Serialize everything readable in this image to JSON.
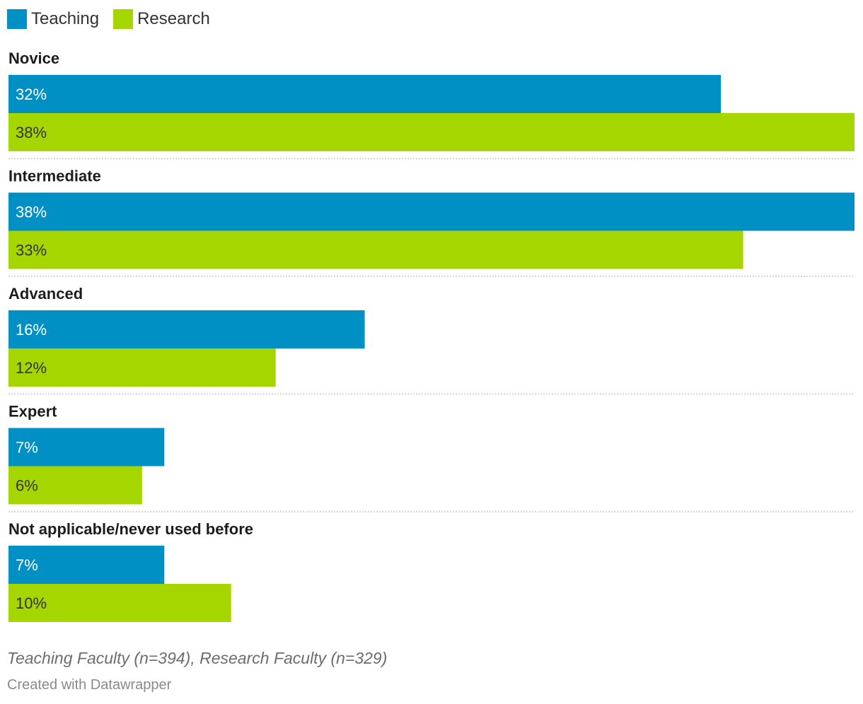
{
  "colors": {
    "teaching": "#0190c3",
    "research": "#a6d600",
    "label_on_teaching": "#ffffff",
    "label_on_research": "#333333",
    "divider": "#cccccc"
  },
  "chart_data": {
    "type": "bar",
    "orientation": "horizontal",
    "grouping": "grouped",
    "categories": [
      "Novice",
      "Intermediate",
      "Advanced",
      "Expert",
      "Not applicable/never used before"
    ],
    "series": [
      {
        "name": "Teaching",
        "values": [
          32,
          38,
          16,
          7,
          7
        ],
        "labels": [
          "32%",
          "38%",
          "16%",
          "7%",
          "7%"
        ]
      },
      {
        "name": "Research",
        "values": [
          38,
          33,
          12,
          6,
          10
        ],
        "labels": [
          "38%",
          "33%",
          "12%",
          "6%",
          "10%"
        ]
      }
    ],
    "xlim": [
      0,
      38
    ],
    "unit": "%",
    "legend_position": "top-left",
    "grid": false,
    "notes": "Teaching Faculty (n=394), Research Faculty (n=329)",
    "credit": "Created with Datawrapper"
  }
}
